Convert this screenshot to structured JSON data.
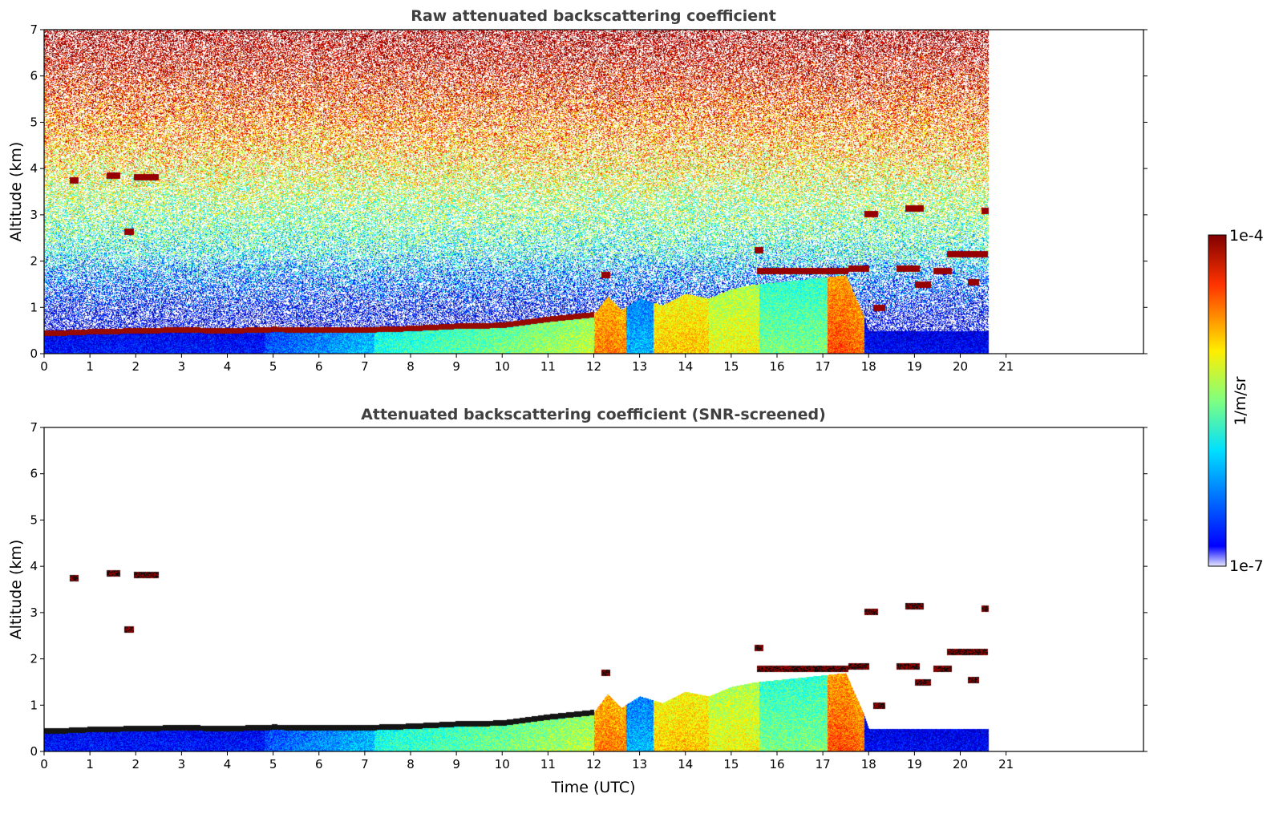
{
  "chart_data": [
    {
      "type": "heatmap",
      "title": "Raw attenuated backscattering coefficient",
      "xlabel": "",
      "ylabel": "Altitude (km)",
      "xlim": [
        0,
        24
      ],
      "ylim": [
        0,
        7
      ],
      "xticks": [
        "0",
        "1",
        "2",
        "3",
        "4",
        "5",
        "6",
        "7",
        "8",
        "9",
        "10",
        "11",
        "12",
        "13",
        "14",
        "15",
        "16",
        "17",
        "18",
        "19",
        "20",
        "21"
      ],
      "yticks": [
        "0",
        "1",
        "2",
        "3",
        "4",
        "5",
        "6",
        "7"
      ],
      "data_end_time": 20.62,
      "noise": true,
      "boundary_layer_top_km": [
        [
          0.3,
          0.45
        ],
        [
          1,
          0.48
        ],
        [
          2,
          0.5
        ],
        [
          3,
          0.52
        ],
        [
          4,
          0.5
        ],
        [
          5,
          0.53
        ],
        [
          6,
          0.52
        ],
        [
          7,
          0.52
        ],
        [
          8,
          0.55
        ],
        [
          9,
          0.6
        ],
        [
          10,
          0.62
        ],
        [
          11,
          0.75
        ],
        [
          12,
          0.85
        ],
        [
          12.3,
          1.25
        ],
        [
          12.6,
          0.95
        ],
        [
          13,
          1.2
        ],
        [
          13.5,
          1.05
        ],
        [
          14,
          1.3
        ],
        [
          14.5,
          1.2
        ],
        [
          15,
          1.4
        ],
        [
          15.5,
          1.5
        ],
        [
          17.5,
          1.7
        ],
        [
          17.9,
          0.8
        ],
        [
          18,
          0.5
        ],
        [
          20.6,
          0.5
        ]
      ],
      "cloud_layers": [
        {
          "t0": 0.55,
          "t1": 0.75,
          "z": 3.75
        },
        {
          "t0": 1.35,
          "t1": 1.65,
          "z": 3.85
        },
        {
          "t0": 1.95,
          "t1": 2.5,
          "z": 3.82
        },
        {
          "t0": 1.75,
          "t1": 1.95,
          "z": 2.65
        },
        {
          "t0": 12.15,
          "t1": 12.35,
          "z": 1.7
        },
        {
          "t0": 15.5,
          "t1": 15.7,
          "z": 2.25
        },
        {
          "t0": 15.55,
          "t1": 17.55,
          "z": 1.8
        },
        {
          "t0": 17.55,
          "t1": 18.0,
          "z": 1.85
        },
        {
          "t0": 17.9,
          "t1": 18.2,
          "z": 3.03
        },
        {
          "t0": 18.1,
          "t1": 18.35,
          "z": 1.0
        },
        {
          "t0": 18.6,
          "t1": 19.1,
          "z": 1.85
        },
        {
          "t0": 18.8,
          "t1": 19.2,
          "z": 3.15
        },
        {
          "t0": 19.0,
          "t1": 19.35,
          "z": 1.5
        },
        {
          "t0": 19.4,
          "t1": 19.8,
          "z": 1.8
        },
        {
          "t0": 19.7,
          "t1": 20.6,
          "z": 2.15
        },
        {
          "t0": 20.15,
          "t1": 20.4,
          "z": 1.55
        },
        {
          "t0": 20.45,
          "t1": 20.62,
          "z": 3.1
        }
      ]
    },
    {
      "type": "heatmap",
      "title": "Attenuated backscattering coefficient (SNR-screened)",
      "xlabel": "Time (UTC)",
      "ylabel": "Altitude (km)",
      "xlim": [
        0,
        24
      ],
      "ylim": [
        0,
        7
      ],
      "xticks": [
        "0",
        "1",
        "2",
        "3",
        "4",
        "5",
        "6",
        "7",
        "8",
        "9",
        "10",
        "11",
        "12",
        "13",
        "14",
        "15",
        "16",
        "17",
        "18",
        "19",
        "20",
        "21"
      ],
      "yticks": [
        "0",
        "1",
        "2",
        "3",
        "4",
        "5",
        "6",
        "7"
      ],
      "data_end_time": 20.62,
      "noise": false,
      "cloud_layers": [
        {
          "t0": 0.55,
          "t1": 0.75,
          "z": 3.75
        },
        {
          "t0": 1.35,
          "t1": 1.65,
          "z": 3.85
        },
        {
          "t0": 1.95,
          "t1": 2.5,
          "z": 3.82
        },
        {
          "t0": 1.75,
          "t1": 1.95,
          "z": 2.65
        },
        {
          "t0": 12.15,
          "t1": 12.35,
          "z": 1.7
        },
        {
          "t0": 15.5,
          "t1": 15.7,
          "z": 2.25
        },
        {
          "t0": 15.55,
          "t1": 17.55,
          "z": 1.8
        },
        {
          "t0": 17.55,
          "t1": 18.0,
          "z": 1.85
        },
        {
          "t0": 17.9,
          "t1": 18.2,
          "z": 3.03
        },
        {
          "t0": 18.1,
          "t1": 18.35,
          "z": 1.0
        },
        {
          "t0": 18.6,
          "t1": 19.1,
          "z": 1.85
        },
        {
          "t0": 18.8,
          "t1": 19.2,
          "z": 3.15
        },
        {
          "t0": 19.0,
          "t1": 19.35,
          "z": 1.5
        },
        {
          "t0": 19.4,
          "t1": 19.8,
          "z": 1.8
        },
        {
          "t0": 19.7,
          "t1": 20.6,
          "z": 2.15
        },
        {
          "t0": 20.15,
          "t1": 20.4,
          "z": 1.55
        },
        {
          "t0": 20.45,
          "t1": 20.62,
          "z": 3.1
        }
      ]
    }
  ],
  "colorbar": {
    "label": "1/m/sr",
    "max_label": "1e-4",
    "min_label": "1e-7",
    "colormap": "jet",
    "scale": "log",
    "min": 1e-07,
    "max": 0.0001
  },
  "colors": {
    "frame": "#000000",
    "title": "#404040",
    "background": "#ffffff"
  }
}
